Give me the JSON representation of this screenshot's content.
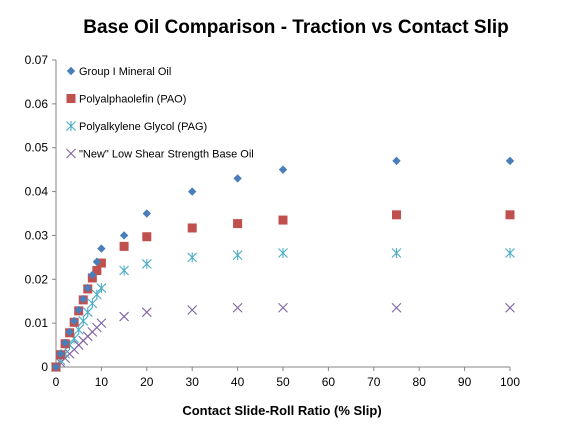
{
  "chart_data": {
    "type": "scatter",
    "title": "Base Oil Comparison  - Traction  vs Contact  Slip",
    "xlabel": "Contact Slide-Roll Ratio (% Slip)",
    "ylabel": "",
    "xlim": [
      0,
      100
    ],
    "ylim": [
      0,
      0.07
    ],
    "x_ticks": [
      "0",
      "10",
      "20",
      "30",
      "40",
      "50",
      "60",
      "70",
      "80",
      "90",
      "100"
    ],
    "y_ticks": [
      "0",
      "0.01",
      "0.02",
      "0.03",
      "0.04",
      "0.05",
      "0.06",
      "0.07"
    ],
    "grid": false,
    "legend_position": "top-left",
    "series": [
      {
        "name": "Group I Mineral Oil",
        "marker": "diamond",
        "color": "#4a7ebb",
        "points": [
          [
            0,
            0
          ],
          [
            1,
            0.003
          ],
          [
            2,
            0.0055
          ],
          [
            3,
            0.008
          ],
          [
            4,
            0.0105
          ],
          [
            5,
            0.013
          ],
          [
            6,
            0.0155
          ],
          [
            7,
            0.018
          ],
          [
            8,
            0.021
          ],
          [
            9,
            0.024
          ],
          [
            10,
            0.027
          ],
          [
            15,
            0.03
          ],
          [
            20,
            0.035
          ],
          [
            30,
            0.04
          ],
          [
            40,
            0.043
          ],
          [
            50,
            0.045
          ],
          [
            75,
            0.047
          ],
          [
            100,
            0.047
          ]
        ]
      },
      {
        "name": "Polyalphaolefin (PAO)",
        "marker": "square",
        "color": "#c0504d",
        "points": [
          [
            0,
            0
          ],
          [
            1,
            0.0028
          ],
          [
            2,
            0.0053
          ],
          [
            3,
            0.0078
          ],
          [
            4,
            0.0102
          ],
          [
            5,
            0.0128
          ],
          [
            6,
            0.0153
          ],
          [
            7,
            0.0178
          ],
          [
            8,
            0.0203
          ],
          [
            9,
            0.022
          ],
          [
            10,
            0.0237
          ],
          [
            15,
            0.0275
          ],
          [
            20,
            0.0297
          ],
          [
            30,
            0.0317
          ],
          [
            40,
            0.0327
          ],
          [
            50,
            0.0335
          ],
          [
            75,
            0.0347
          ],
          [
            100,
            0.0347
          ]
        ]
      },
      {
        "name": "Polyalkylene Glycol (PAG)",
        "marker": "asterisk",
        "color": "#4bacc6",
        "points": [
          [
            0,
            0
          ],
          [
            1,
            0.0015
          ],
          [
            2,
            0.003
          ],
          [
            3,
            0.005
          ],
          [
            4,
            0.0065
          ],
          [
            5,
            0.0085
          ],
          [
            6,
            0.0105
          ],
          [
            7,
            0.0125
          ],
          [
            8,
            0.0145
          ],
          [
            9,
            0.0165
          ],
          [
            10,
            0.018
          ],
          [
            15,
            0.022
          ],
          [
            20,
            0.0235
          ],
          [
            30,
            0.025
          ],
          [
            40,
            0.0255
          ],
          [
            50,
            0.026
          ],
          [
            75,
            0.026
          ],
          [
            100,
            0.026
          ]
        ]
      },
      {
        "name": "\"New\" Low Shear Strength Base Oil",
        "marker": "cross",
        "color": "#8064a2",
        "points": [
          [
            0,
            0
          ],
          [
            1,
            0.001
          ],
          [
            2,
            0.002
          ],
          [
            3,
            0.003
          ],
          [
            4,
            0.004
          ],
          [
            5,
            0.005
          ],
          [
            6,
            0.006
          ],
          [
            7,
            0.007
          ],
          [
            8,
            0.008
          ],
          [
            9,
            0.009
          ],
          [
            10,
            0.01
          ],
          [
            15,
            0.0115
          ],
          [
            20,
            0.0125
          ],
          [
            30,
            0.013
          ],
          [
            40,
            0.0135
          ],
          [
            50,
            0.0135
          ],
          [
            75,
            0.0135
          ],
          [
            100,
            0.0135
          ]
        ]
      }
    ]
  }
}
